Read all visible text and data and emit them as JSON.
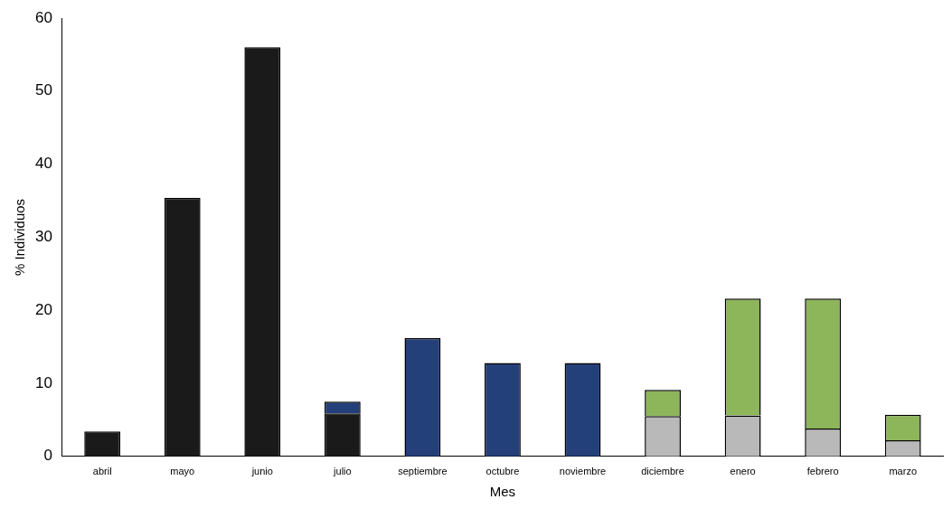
{
  "chart_data": {
    "type": "bar",
    "stacked": true,
    "xlabel": "Mes",
    "ylabel": "% Individuos",
    "categories": [
      "abril",
      "mayo",
      "junio",
      "julio",
      "septiembre",
      "octubre",
      "noviembre",
      "diciembre",
      "enero",
      "febrero",
      "marzo"
    ],
    "series": [
      {
        "color": "#1a1a1a",
        "values": [
          3.4,
          35.4,
          56,
          5.9,
          null,
          null,
          null,
          null,
          null,
          null,
          null
        ]
      },
      {
        "color": "#b9b9b9",
        "values": [
          null,
          null,
          null,
          null,
          null,
          null,
          null,
          5.5,
          5.6,
          3.8,
          2.2
        ]
      },
      {
        "color": "#24407a",
        "values": [
          null,
          null,
          null,
          1.6,
          16.2,
          12.8,
          12.8,
          null,
          null,
          null,
          null
        ]
      },
      {
        "color": "#8db55a",
        "values": [
          null,
          null,
          null,
          null,
          null,
          null,
          null,
          3.6,
          16,
          17.8,
          3.5
        ]
      }
    ],
    "ylim": [
      0,
      60
    ],
    "yticks": [
      0,
      10,
      20,
      30,
      40,
      50,
      60
    ],
    "grid": false,
    "legend": false
  }
}
